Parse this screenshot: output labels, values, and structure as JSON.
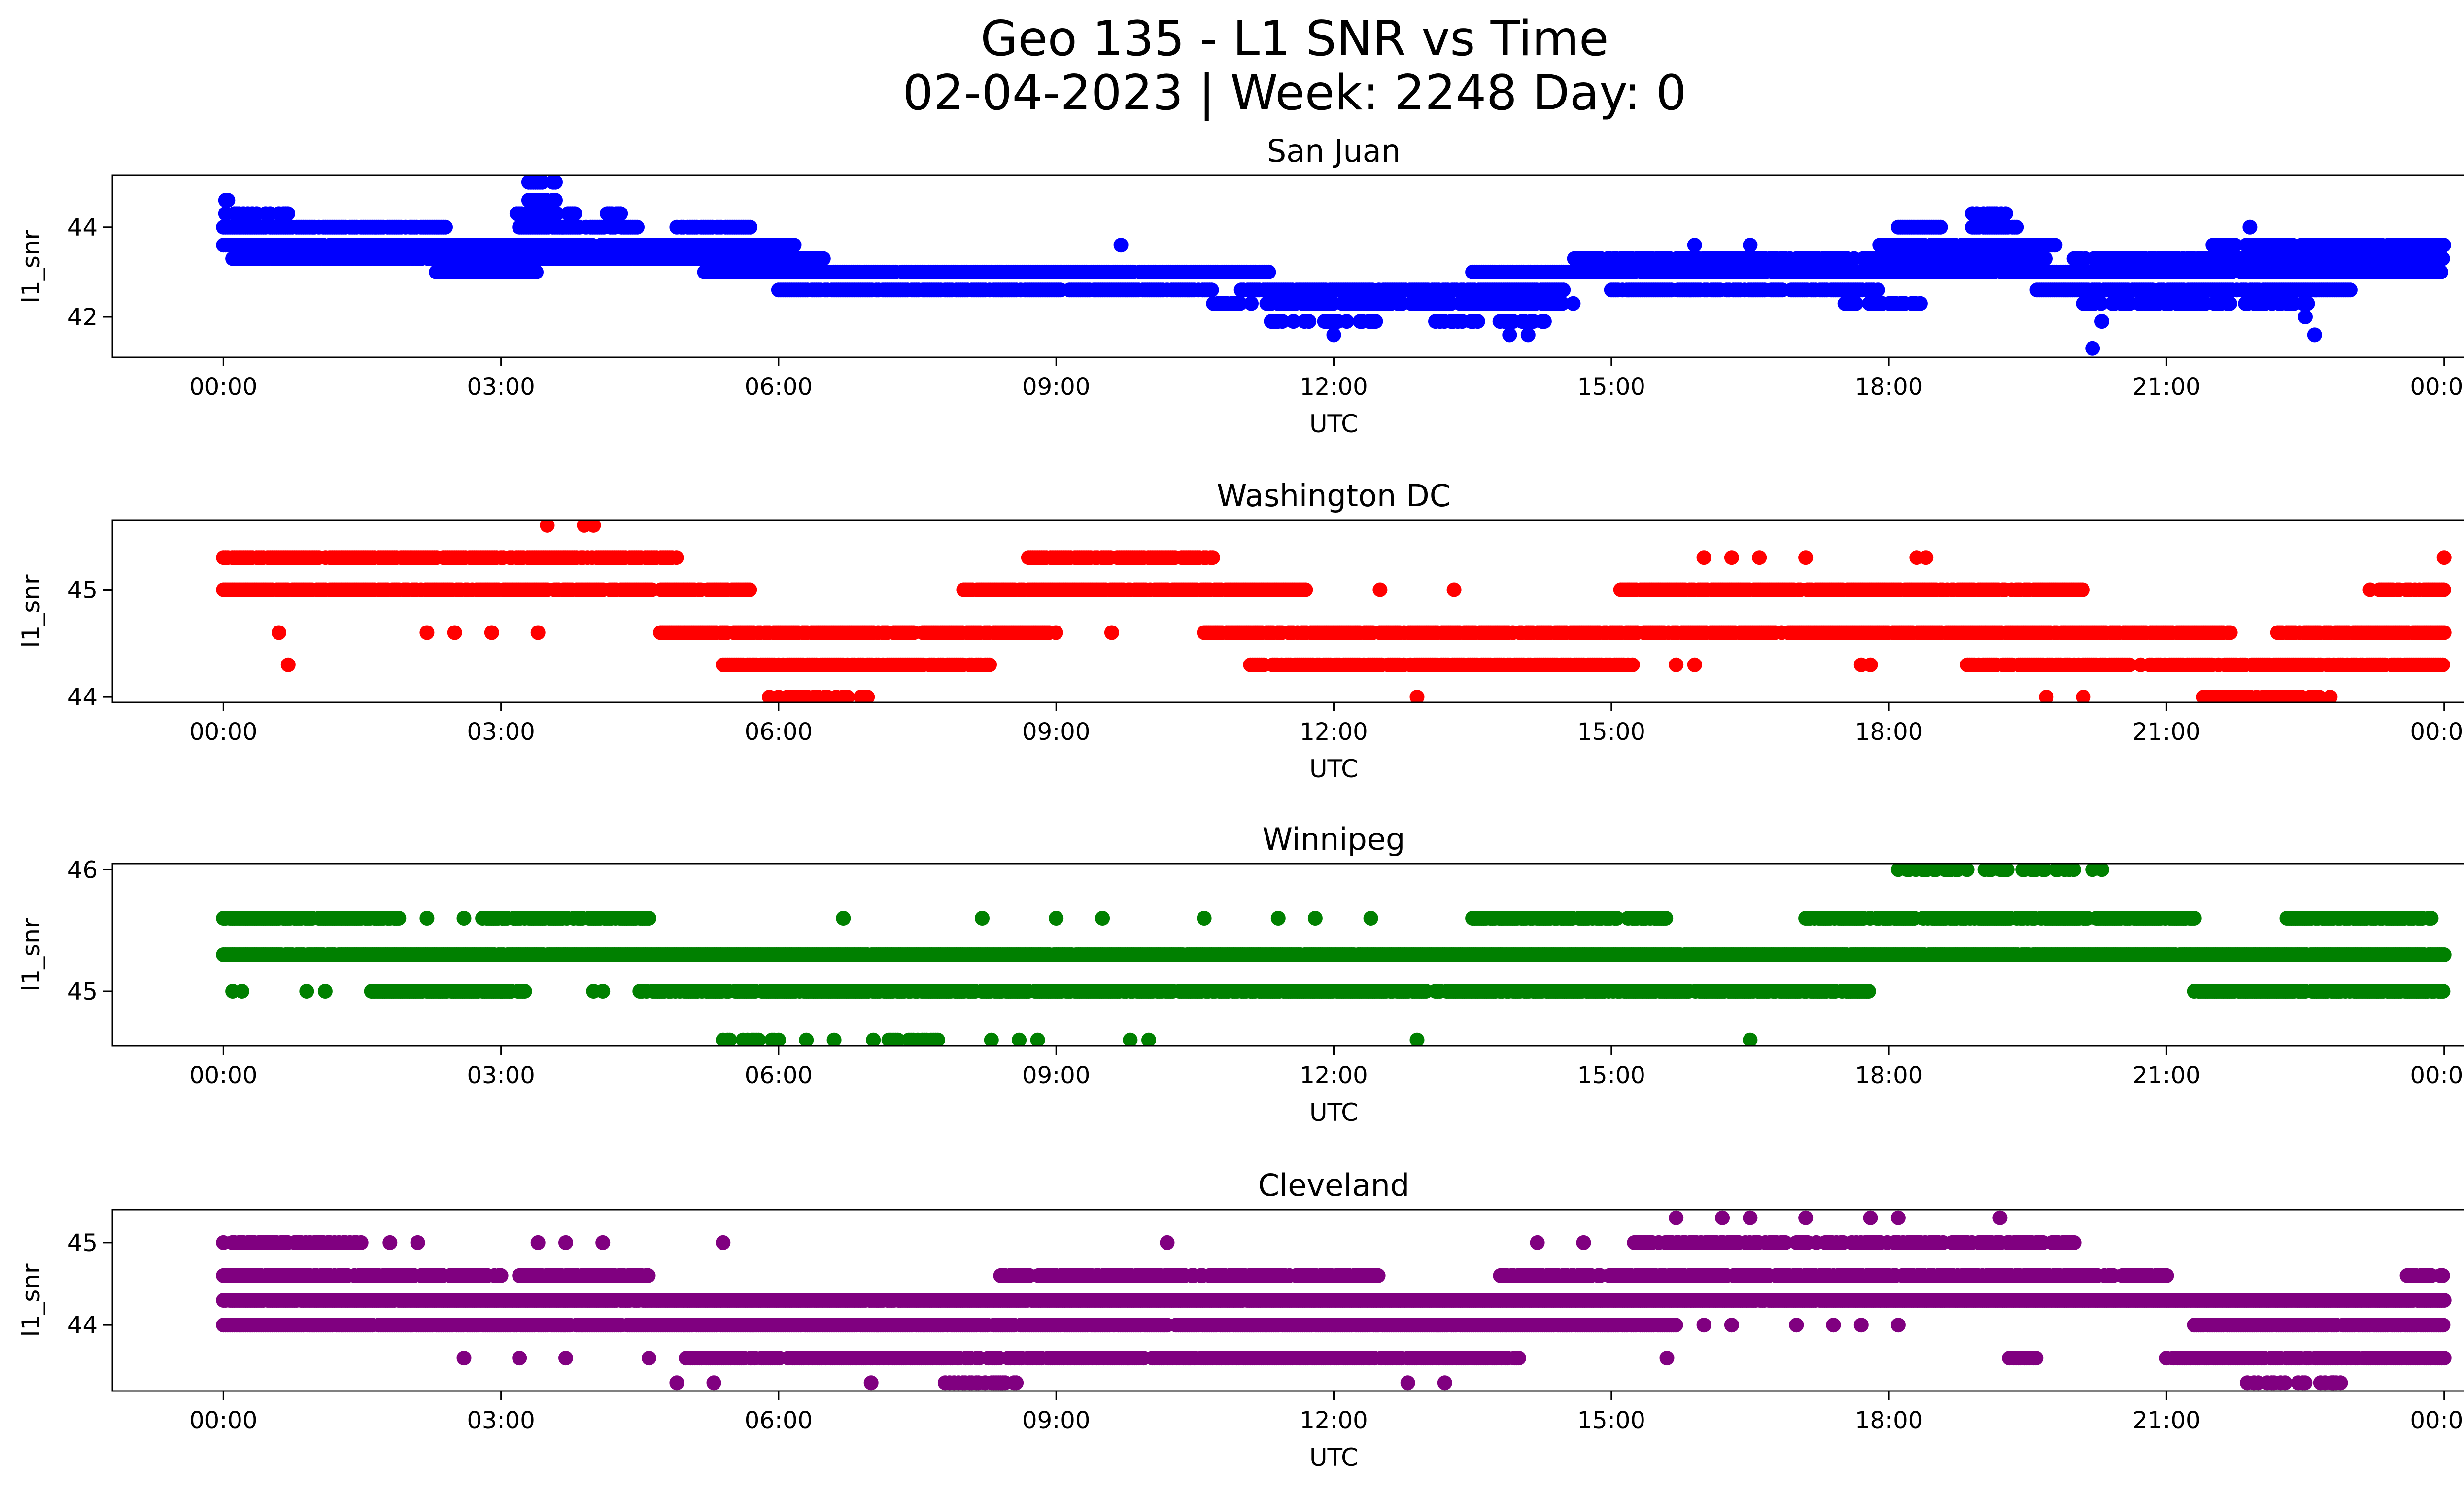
{
  "figure": {
    "title_line1": "Geo 135 - L1 SNR vs Time",
    "title_line2": "02-04-2023 | Week: 2248 Day: 0"
  },
  "chart_data": [
    {
      "type": "scatter",
      "title": "San Juan",
      "xlabel": "UTC",
      "ylabel": "l1_snr",
      "color": "#0000ff",
      "x_ticks": [
        "00:00",
        "03:00",
        "06:00",
        "09:00",
        "12:00",
        "15:00",
        "18:00",
        "21:00",
        "00:00"
      ],
      "y_ticks": [
        42,
        44
      ],
      "xlim_hours": [
        -1.2,
        25.2
      ],
      "ylim": [
        41.1,
        45.15
      ],
      "grid": false,
      "bands": [
        {
          "y": 43.6,
          "ranges": [
            [
              0,
              6.2
            ],
            [
              17.9,
              19.8
            ],
            [
              21.5,
              24.0
            ]
          ],
          "density": 0.88
        },
        {
          "y": 43.3,
          "ranges": [
            [
              0.1,
              6.5
            ],
            [
              14.6,
              19.7
            ],
            [
              20.0,
              24.0
            ]
          ],
          "density": 0.85
        },
        {
          "y": 43.0,
          "ranges": [
            [
              2.3,
              3.4
            ],
            [
              5.2,
              11.3
            ],
            [
              13.5,
              24.0
            ]
          ],
          "density": 0.85
        },
        {
          "y": 42.6,
          "ranges": [
            [
              6.0,
              10.7
            ],
            [
              11.0,
              14.5
            ],
            [
              15.0,
              17.9
            ],
            [
              19.6,
              23.0
            ]
          ],
          "density": 0.85
        },
        {
          "y": 42.3,
          "ranges": [
            [
              10.7,
              14.6
            ],
            [
              17.5,
              18.4
            ],
            [
              20.1,
              22.6
            ]
          ],
          "density": 0.6
        },
        {
          "y": 41.9,
          "ranges": [
            [
              11.3,
              12.5
            ],
            [
              13.1,
              14.3
            ]
          ],
          "density": 0.4
        },
        {
          "y": 44.0,
          "ranges": [
            [
              0,
              2.4
            ],
            [
              3.2,
              4.5
            ],
            [
              4.9,
              5.7
            ],
            [
              18.1,
              18.6
            ],
            [
              18.9,
              19.4
            ]
          ],
          "density": 0.85
        },
        {
          "y": 44.3,
          "ranges": [
            [
              0,
              0.7
            ],
            [
              3.1,
              3.8
            ],
            [
              4.1,
              4.3
            ],
            [
              18.9,
              19.3
            ]
          ],
          "density": 0.7
        },
        {
          "y": 44.6,
          "ranges": [
            [
              0,
              0.05
            ],
            [
              3.3,
              3.6
            ]
          ],
          "density": 0.8
        },
        {
          "y": 45.0,
          "ranges": [
            [
              3.3,
              3.6
            ]
          ],
          "density": 0.8
        }
      ],
      "outliers": [
        [
          0.2,
          43.3
        ],
        [
          0.6,
          43.3
        ],
        [
          2.9,
          43.0
        ],
        [
          9.7,
          43.6
        ],
        [
          12.0,
          41.6
        ],
        [
          12.4,
          41.9
        ],
        [
          13.9,
          41.6
        ],
        [
          14.1,
          41.6
        ],
        [
          15.9,
          43.6
        ],
        [
          16.5,
          43.6
        ],
        [
          20.2,
          41.3
        ],
        [
          20.3,
          41.9
        ],
        [
          21.9,
          44.0
        ],
        [
          22.6,
          41.6
        ],
        [
          22.5,
          42.0
        ],
        [
          22.3,
          42.3
        ]
      ]
    },
    {
      "type": "scatter",
      "title": "Washington DC",
      "xlabel": "UTC",
      "ylabel": "l1_snr",
      "color": "#ff0000",
      "x_ticks": [
        "00:00",
        "03:00",
        "06:00",
        "09:00",
        "12:00",
        "15:00",
        "18:00",
        "21:00",
        "00:00"
      ],
      "y_ticks": [
        44,
        45
      ],
      "xlim_hours": [
        -1.2,
        25.2
      ],
      "ylim": [
        43.95,
        45.65
      ],
      "grid": false,
      "bands": [
        {
          "y": 45.3,
          "ranges": [
            [
              0,
              4.9
            ],
            [
              8.7,
              10.7
            ]
          ],
          "density": 0.9
        },
        {
          "y": 45.0,
          "ranges": [
            [
              0,
              5.7
            ],
            [
              8.0,
              11.7
            ],
            [
              15.1,
              20.1
            ],
            [
              23.3,
              24.0
            ]
          ],
          "density": 0.88
        },
        {
          "y": 44.6,
          "ranges": [
            [
              4.7,
              9.0
            ],
            [
              10.6,
              21.7
            ],
            [
              22.2,
              24.0
            ]
          ],
          "density": 0.9
        },
        {
          "y": 44.3,
          "ranges": [
            [
              5.4,
              8.3
            ],
            [
              11.1,
              15.3
            ],
            [
              18.8,
              24.0
            ]
          ],
          "density": 0.8
        },
        {
          "y": 44.0,
          "ranges": [
            [
              6.0,
              7.0
            ],
            [
              21.4,
              22.8
            ]
          ],
          "density": 0.6
        }
      ],
      "outliers": [
        [
          3.5,
          45.6
        ],
        [
          3.9,
          45.6
        ],
        [
          4.0,
          45.6
        ],
        [
          0.6,
          44.6
        ],
        [
          0.7,
          44.3
        ],
        [
          2.2,
          44.6
        ],
        [
          2.5,
          44.6
        ],
        [
          2.9,
          44.6
        ],
        [
          3.4,
          44.6
        ],
        [
          5.9,
          44.0
        ],
        [
          9.6,
          44.6
        ],
        [
          12.5,
          45.0
        ],
        [
          12.9,
          44.0
        ],
        [
          13.3,
          45.0
        ],
        [
          16.0,
          45.3
        ],
        [
          16.3,
          45.3
        ],
        [
          16.6,
          45.3
        ],
        [
          17.1,
          45.3
        ],
        [
          18.3,
          45.3
        ],
        [
          18.4,
          45.3
        ],
        [
          15.7,
          44.3
        ],
        [
          15.9,
          44.3
        ],
        [
          17.7,
          44.3
        ],
        [
          17.8,
          44.3
        ],
        [
          19.7,
          44.0
        ],
        [
          20.1,
          44.0
        ],
        [
          23.2,
          45.0
        ],
        [
          24.0,
          45.3
        ]
      ]
    },
    {
      "type": "scatter",
      "title": "Winnipeg",
      "xlabel": "UTC",
      "ylabel": "l1_snr",
      "color": "#008000",
      "x_ticks": [
        "00:00",
        "03:00",
        "06:00",
        "09:00",
        "12:00",
        "15:00",
        "18:00",
        "21:00",
        "00:00"
      ],
      "y_ticks": [
        45,
        46
      ],
      "xlim_hours": [
        -1.2,
        25.2
      ],
      "ylim": [
        44.55,
        46.05
      ],
      "grid": false,
      "bands": [
        {
          "y": 45.3,
          "ranges": [
            [
              0,
              24.0
            ]
          ],
          "density": 0.98
        },
        {
          "y": 45.6,
          "ranges": [
            [
              0,
              1.9
            ],
            [
              2.8,
              4.6
            ],
            [
              13.5,
              15.6
            ],
            [
              17.1,
              21.3
            ],
            [
              22.3,
              23.9
            ]
          ],
          "density": 0.8
        },
        {
          "y": 45.0,
          "ranges": [
            [
              1.6,
              3.3
            ],
            [
              4.5,
              13.0
            ],
            [
              13.1,
              17.8
            ],
            [
              21.3,
              24.0
            ]
          ],
          "density": 0.85
        },
        {
          "y": 44.6,
          "ranges": [
            [
              5.4,
              6.0
            ],
            [
              7.0,
              7.8
            ]
          ],
          "density": 0.45
        },
        {
          "y": 46.0,
          "ranges": [
            [
              18.1,
              20.0
            ]
          ],
          "density": 0.55
        }
      ],
      "outliers": [
        [
          0.1,
          45.0
        ],
        [
          0.2,
          45.0
        ],
        [
          0.9,
          45.0
        ],
        [
          1.1,
          45.0
        ],
        [
          2.2,
          45.6
        ],
        [
          2.6,
          45.6
        ],
        [
          4.0,
          45.0
        ],
        [
          4.1,
          45.0
        ],
        [
          6.7,
          45.6
        ],
        [
          8.2,
          45.6
        ],
        [
          9.0,
          45.6
        ],
        [
          9.5,
          45.6
        ],
        [
          10.6,
          45.6
        ],
        [
          11.4,
          45.6
        ],
        [
          11.8,
          45.6
        ],
        [
          12.4,
          45.6
        ],
        [
          6.3,
          44.6
        ],
        [
          6.6,
          44.6
        ],
        [
          8.3,
          44.6
        ],
        [
          8.6,
          44.6
        ],
        [
          8.8,
          44.6
        ],
        [
          9.8,
          44.6
        ],
        [
          10.0,
          44.6
        ],
        [
          12.9,
          44.6
        ],
        [
          16.5,
          44.6
        ],
        [
          20.2,
          46.0
        ],
        [
          20.3,
          46.0
        ]
      ]
    },
    {
      "type": "scatter",
      "title": "Cleveland",
      "xlabel": "UTC",
      "ylabel": "l1_snr",
      "color": "#800080",
      "x_ticks": [
        "00:00",
        "03:00",
        "06:00",
        "09:00",
        "12:00",
        "15:00",
        "18:00",
        "21:00",
        "00:00"
      ],
      "y_ticks": [
        44,
        45
      ],
      "xlim_hours": [
        -1.2,
        25.2
      ],
      "ylim": [
        43.2,
        45.4
      ],
      "grid": false,
      "bands": [
        {
          "y": 44.3,
          "ranges": [
            [
              0,
              24.0
            ]
          ],
          "density": 0.98
        },
        {
          "y": 44.0,
          "ranges": [
            [
              0,
              15.7
            ],
            [
              21.3,
              24.0
            ]
          ],
          "density": 0.92
        },
        {
          "y": 44.6,
          "ranges": [
            [
              0,
              3.0
            ],
            [
              3.2,
              4.6
            ],
            [
              8.4,
              12.5
            ],
            [
              13.8,
              21.0
            ],
            [
              23.6,
              24.0
            ]
          ],
          "density": 0.85
        },
        {
          "y": 43.6,
          "ranges": [
            [
              5.0,
              14.0
            ],
            [
              19.3,
              19.6
            ],
            [
              21.0,
              24.0
            ]
          ],
          "density": 0.8
        },
        {
          "y": 45.0,
          "ranges": [
            [
              0,
              1.5
            ],
            [
              15.2,
              20.0
            ]
          ],
          "density": 0.7
        },
        {
          "y": 43.3,
          "ranges": [
            [
              7.8,
              8.6
            ],
            [
              21.8,
              22.9
            ]
          ],
          "density": 0.5
        }
      ],
      "outliers": [
        [
          1.8,
          45.0
        ],
        [
          2.1,
          45.0
        ],
        [
          3.4,
          45.0
        ],
        [
          3.7,
          45.0
        ],
        [
          4.1,
          45.0
        ],
        [
          5.4,
          45.0
        ],
        [
          10.2,
          45.0
        ],
        [
          14.2,
          45.0
        ],
        [
          14.7,
          45.0
        ],
        [
          15.7,
          45.3
        ],
        [
          16.2,
          45.3
        ],
        [
          16.5,
          45.3
        ],
        [
          17.1,
          45.3
        ],
        [
          17.8,
          45.3
        ],
        [
          18.1,
          45.3
        ],
        [
          19.2,
          45.3
        ],
        [
          2.6,
          43.6
        ],
        [
          3.2,
          43.6
        ],
        [
          3.7,
          43.6
        ],
        [
          4.6,
          43.6
        ],
        [
          15.6,
          43.6
        ],
        [
          4.9,
          43.3
        ],
        [
          5.3,
          43.3
        ],
        [
          7.0,
          43.3
        ],
        [
          12.8,
          43.3
        ],
        [
          13.2,
          43.3
        ],
        [
          16.0,
          44.0
        ],
        [
          16.3,
          44.0
        ],
        [
          17.0,
          44.0
        ],
        [
          17.4,
          44.0
        ],
        [
          17.7,
          44.0
        ],
        [
          18.1,
          44.0
        ],
        [
          22.8,
          43.3
        ]
      ]
    }
  ]
}
